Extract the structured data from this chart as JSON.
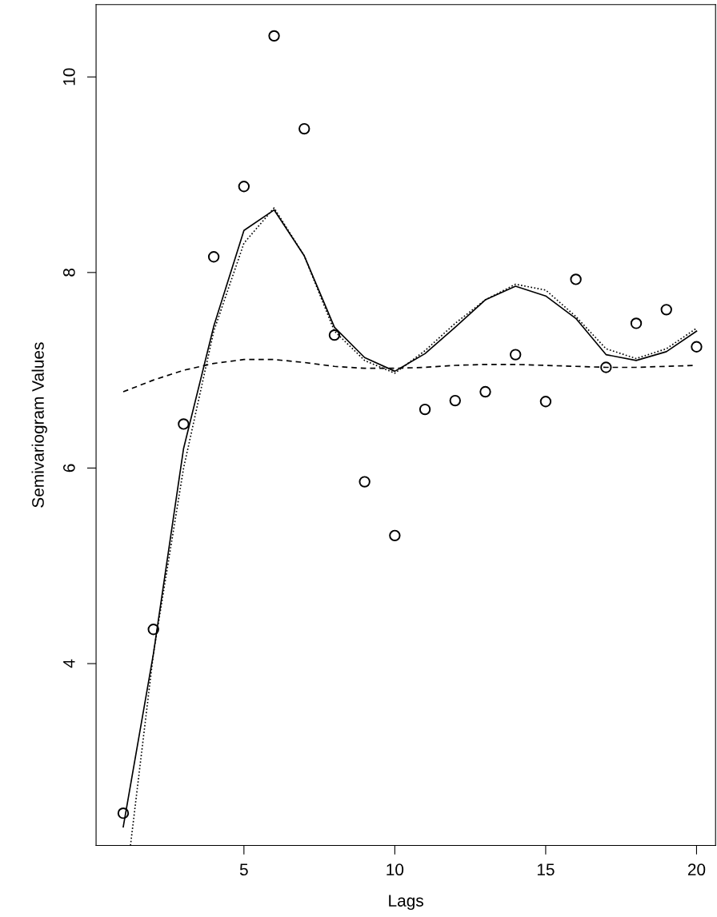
{
  "chart_data": {
    "type": "line",
    "xlabel": "Lags",
    "ylabel": "Semivariogram Values",
    "xlim": [
      0.1,
      20.63
    ],
    "ylim": [
      2.14,
      10.74
    ],
    "xticks": [
      5,
      10,
      15,
      20
    ],
    "yticks": [
      4,
      6,
      8,
      10
    ],
    "grid": false,
    "legend": false,
    "series": [
      {
        "type": "scatter",
        "marker": "circle",
        "color": "#000000",
        "x": [
          1,
          2,
          3,
          4,
          5,
          6,
          7,
          8,
          9,
          10,
          11,
          12,
          13,
          14,
          15,
          16,
          17,
          18,
          19,
          20
        ],
        "values": [
          2.47,
          4.35,
          6.45,
          8.16,
          8.88,
          10.42,
          9.47,
          7.36,
          5.86,
          5.31,
          6.6,
          6.69,
          6.78,
          7.16,
          6.68,
          7.93,
          7.03,
          7.48,
          7.62,
          7.24
        ]
      },
      {
        "line_style": "solid",
        "color": "#000000",
        "x": [
          1,
          2,
          3,
          4,
          5,
          6,
          7,
          8,
          9,
          10,
          11,
          12,
          13,
          14,
          15,
          16,
          17,
          18,
          19,
          20
        ],
        "values": [
          2.33,
          4.1,
          6.2,
          7.45,
          8.43,
          8.64,
          8.17,
          7.44,
          7.13,
          6.99,
          7.17,
          7.44,
          7.72,
          7.86,
          7.76,
          7.53,
          7.16,
          7.1,
          7.19,
          7.4
        ]
      },
      {
        "line_style": "dotted",
        "color": "#000000",
        "x": [
          1.24,
          2,
          3,
          4,
          5,
          6,
          7,
          8,
          9,
          10,
          11,
          12,
          13,
          14,
          15,
          16,
          17,
          18,
          19,
          20
        ],
        "values": [
          2.14,
          4.1,
          6.0,
          7.4,
          8.3,
          8.66,
          8.17,
          7.4,
          7.1,
          6.97,
          7.2,
          7.48,
          7.72,
          7.88,
          7.82,
          7.55,
          7.22,
          7.12,
          7.22,
          7.43
        ]
      },
      {
        "line_style": "dashed",
        "color": "#000000",
        "x": [
          1,
          2,
          3,
          4,
          5,
          6,
          7,
          8,
          9,
          10,
          11,
          12,
          13,
          14,
          15,
          16,
          17,
          18,
          19,
          20
        ],
        "values": [
          6.78,
          6.9,
          7.0,
          7.07,
          7.11,
          7.11,
          7.08,
          7.04,
          7.02,
          7.02,
          7.03,
          7.05,
          7.06,
          7.06,
          7.05,
          7.04,
          7.03,
          7.03,
          7.04,
          7.05
        ]
      }
    ]
  }
}
